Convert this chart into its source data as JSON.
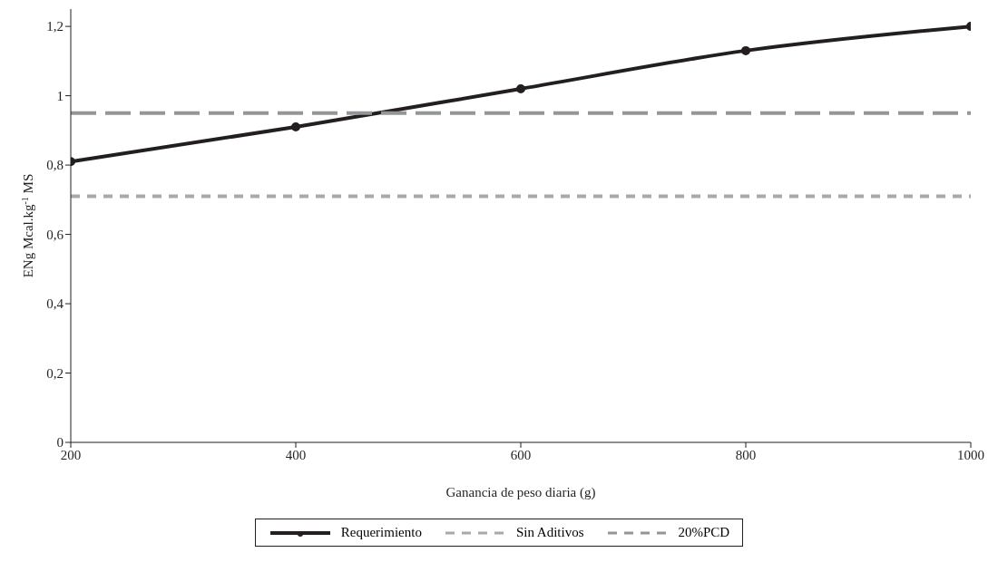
{
  "chart_data": {
    "type": "line",
    "xlabel": "Ganancia de peso diaria (g)",
    "ylabel": "ENg Mcal.kg$^{-1}$ MS",
    "x": [
      200,
      400,
      600,
      800,
      1000
    ],
    "series": [
      {
        "name": "Requerimiento",
        "color": "#231f20",
        "values": [
          0.81,
          0.91,
          1.02,
          1.13,
          1.2
        ],
        "marker": "circle",
        "line_style": "solid"
      },
      {
        "name": "Sin Aditivos",
        "color": "#a7a9ac",
        "values": [
          0.71,
          0.71,
          0.71,
          0.71,
          0.71
        ],
        "marker": "none",
        "line_style": "dashed"
      },
      {
        "name": "20%PCD",
        "color": "#939598",
        "values": [
          0.95,
          0.95,
          0.95,
          0.95,
          0.95
        ],
        "marker": "none",
        "line_style": "dashed"
      }
    ],
    "xlim": [
      200,
      1000
    ],
    "xticks": [
      200,
      400,
      600,
      800,
      1000
    ],
    "ylim": [
      0,
      1.25
    ],
    "yticks": [
      0,
      {
        "value": 0.2,
        "label": "0,2"
      },
      {
        "value": 0.4,
        "label": "0,4"
      },
      {
        "value": 0.6,
        "label": "0,6"
      },
      {
        "value": 0.8,
        "label": "0,8"
      },
      1,
      {
        "value": 1.2,
        "label": "1,2"
      }
    ],
    "legend": "bottom"
  }
}
